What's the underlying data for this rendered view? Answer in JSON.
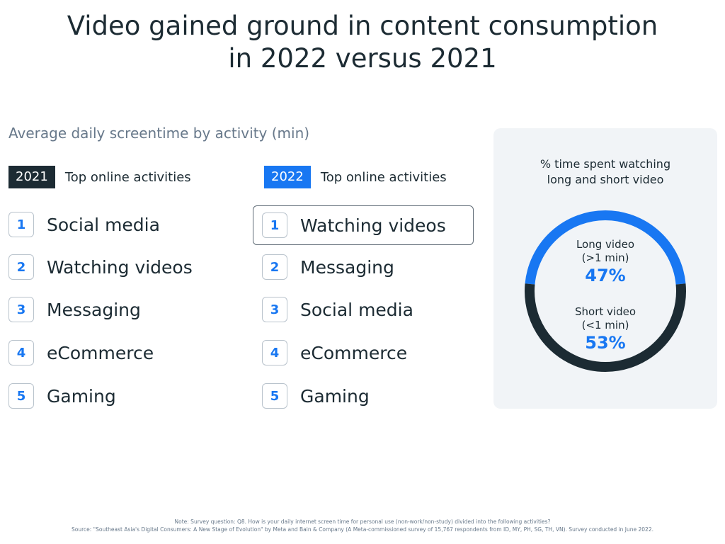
{
  "title_line1": "Video gained ground in content consumption",
  "title_line2": "in 2022 versus 2021",
  "subtitle": "Average daily screentime by activity (min)",
  "colors": {
    "dark": "#1c2b33",
    "accent": "#1877f2",
    "panel": "#f1f4f7"
  },
  "lists": [
    {
      "year": "2021",
      "label": "Top online activities",
      "items": [
        {
          "rank": "1",
          "name": "Social media"
        },
        {
          "rank": "2",
          "name": "Watching videos"
        },
        {
          "rank": "3",
          "name": "Messaging"
        },
        {
          "rank": "4",
          "name": "eCommerce"
        },
        {
          "rank": "5",
          "name": "Gaming"
        }
      ]
    },
    {
      "year": "2022",
      "label": "Top online activities",
      "items": [
        {
          "rank": "1",
          "name": "Watching videos"
        },
        {
          "rank": "2",
          "name": "Messaging"
        },
        {
          "rank": "3",
          "name": "Social media"
        },
        {
          "rank": "4",
          "name": "eCommerce"
        },
        {
          "rank": "5",
          "name": "Gaming"
        }
      ]
    }
  ],
  "panel": {
    "title_line1": "% time spent watching",
    "title_line2": "long and short video"
  },
  "chart_data": {
    "type": "pie",
    "title": "% time spent watching long and short video",
    "slices": [
      {
        "label_line1": "Long video",
        "label_line2": "(>1 min)",
        "value": 47,
        "value_label": "47%",
        "color": "#1877f2"
      },
      {
        "label_line1": "Short video",
        "label_line2": "(<1 min)",
        "value": 53,
        "value_label": "53%",
        "color": "#1c2b33"
      }
    ]
  },
  "note_line1": "Note: Survey question: Q8. How is your daily internet screen time for personal use (non-work/non-study) divided into the following activities?",
  "note_line2": "Source: \"Southeast Asia's Digital Consumers: A New Stage of Evolution\" by Meta and Bain & Company (A Meta-commissioned survey of 15,767 respondents from ID, MY, PH, SG, TH, VN). Survey conducted in June 2022."
}
